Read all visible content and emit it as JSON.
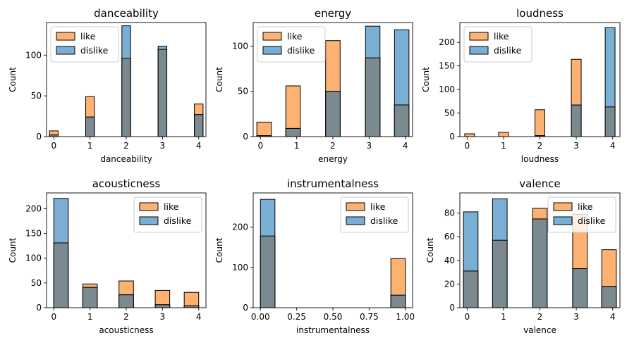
{
  "figure": {
    "like_color": "#fdb272",
    "dislike_color": "#7aaed3",
    "overlap_color": "#7a8a90"
  },
  "chart_data": [
    {
      "type": "histogram",
      "title": "danceability",
      "xlabel": "danceability",
      "ylabel": "Count",
      "xlim": [
        -0.2,
        4.2
      ],
      "ylim": [
        0,
        140
      ],
      "xticks": [
        0,
        1,
        2,
        3,
        4
      ],
      "xticklabels": [
        "0",
        "1",
        "2",
        "3",
        "4"
      ],
      "yticks": [
        0,
        50,
        100
      ],
      "bin_centers": [
        0,
        1,
        2,
        3,
        4
      ],
      "bin_width": 0.24,
      "legend": {
        "location": "upper-left",
        "entries": [
          "like",
          "dislike"
        ]
      },
      "series": [
        {
          "name": "like",
          "values": [
            7,
            49,
            96,
            107,
            40
          ]
        },
        {
          "name": "dislike",
          "values": [
            2,
            24,
            136,
            111,
            27
          ]
        }
      ]
    },
    {
      "type": "histogram",
      "title": "energy",
      "xlabel": "energy",
      "ylabel": "Count",
      "xlim": [
        -0.2,
        4.2
      ],
      "ylim": [
        0,
        126
      ],
      "xticks": [
        0,
        1,
        2,
        3,
        4
      ],
      "xticklabels": [
        "0",
        "1",
        "2",
        "3",
        "4"
      ],
      "yticks": [
        0,
        50,
        100
      ],
      "bin_centers": [
        0.1,
        0.9,
        2.0,
        3.1,
        3.9
      ],
      "bin_width": 0.4,
      "legend": {
        "location": "upper-left",
        "entries": [
          "like",
          "dislike"
        ]
      },
      "series": [
        {
          "name": "like",
          "values": [
            16,
            56,
            106,
            87,
            35
          ]
        },
        {
          "name": "dislike",
          "values": [
            1,
            9,
            50,
            122,
            118
          ]
        }
      ]
    },
    {
      "type": "histogram",
      "title": "loudness",
      "xlabel": "loudness",
      "ylabel": "Count",
      "xlim": [
        -0.2,
        4.2
      ],
      "ylim": [
        0,
        242
      ],
      "xticks": [
        0,
        1,
        2,
        3,
        4
      ],
      "xticklabels": [
        "0",
        "1",
        "2",
        "3",
        "4"
      ],
      "yticks": [
        0,
        50,
        100,
        150,
        200
      ],
      "bin_centers": [
        0.07,
        1.0,
        2.0,
        3.0,
        3.93
      ],
      "bin_width": 0.27,
      "legend": {
        "location": "upper-left",
        "entries": [
          "like",
          "dislike"
        ]
      },
      "series": [
        {
          "name": "like",
          "values": [
            6,
            9,
            57,
            164,
            63
          ]
        },
        {
          "name": "dislike",
          "values": [
            0,
            0,
            2,
            67,
            231
          ]
        }
      ]
    },
    {
      "type": "histogram",
      "title": "acousticness",
      "xlabel": "acousticness",
      "ylabel": "Count",
      "xlim": [
        -0.2,
        4.2
      ],
      "ylim": [
        0,
        232
      ],
      "xticks": [
        0,
        1,
        2,
        3,
        4
      ],
      "xticklabels": [
        "0",
        "1",
        "2",
        "3",
        "4"
      ],
      "yticks": [
        0,
        50,
        100,
        150,
        200
      ],
      "bin_centers": [
        0.2,
        1.0,
        2.0,
        3.0,
        3.8
      ],
      "bin_width": 0.4,
      "legend": {
        "location": "upper-right",
        "entries": [
          "like",
          "dislike"
        ]
      },
      "series": [
        {
          "name": "like",
          "values": [
            131,
            48,
            54,
            35,
            31
          ]
        },
        {
          "name": "dislike",
          "values": [
            221,
            41,
            26,
            6,
            4
          ]
        }
      ]
    },
    {
      "type": "histogram",
      "title": "instrumentalness",
      "xlabel": "instrumentalness",
      "ylabel": "Count",
      "xlim": [
        -0.05,
        1.05
      ],
      "ylim": [
        0,
        285
      ],
      "xticks": [
        0.0,
        0.25,
        0.5,
        0.75,
        1.0
      ],
      "xticklabels": [
        "0.00",
        "0.25",
        "0.50",
        "0.75",
        "1.00"
      ],
      "yticks": [
        0,
        100,
        200
      ],
      "bin_centers": [
        0.05,
        0.95
      ],
      "bin_width": 0.1,
      "legend": {
        "location": "upper-right",
        "entries": [
          "like",
          "dislike"
        ]
      },
      "series": [
        {
          "name": "like",
          "values": [
            178,
            122
          ]
        },
        {
          "name": "dislike",
          "values": [
            269,
            31
          ]
        }
      ]
    },
    {
      "type": "histogram",
      "title": "valence",
      "xlabel": "valence",
      "ylabel": "Count",
      "xlim": [
        -0.2,
        4.2
      ],
      "ylim": [
        0,
        97
      ],
      "xticks": [
        0,
        1,
        2,
        3,
        4
      ],
      "xticklabels": [
        "0",
        "1",
        "2",
        "3",
        "4"
      ],
      "yticks": [
        0,
        20,
        40,
        60,
        80
      ],
      "bin_centers": [
        0.1,
        0.9,
        2.0,
        3.1,
        3.9
      ],
      "bin_width": 0.4,
      "legend": {
        "location": "upper-right",
        "entries": [
          "like",
          "dislike"
        ]
      },
      "series": [
        {
          "name": "like",
          "values": [
            31,
            57,
            84,
            79,
            49
          ]
        },
        {
          "name": "dislike",
          "values": [
            81,
            92,
            75,
            33,
            18
          ]
        }
      ]
    }
  ]
}
